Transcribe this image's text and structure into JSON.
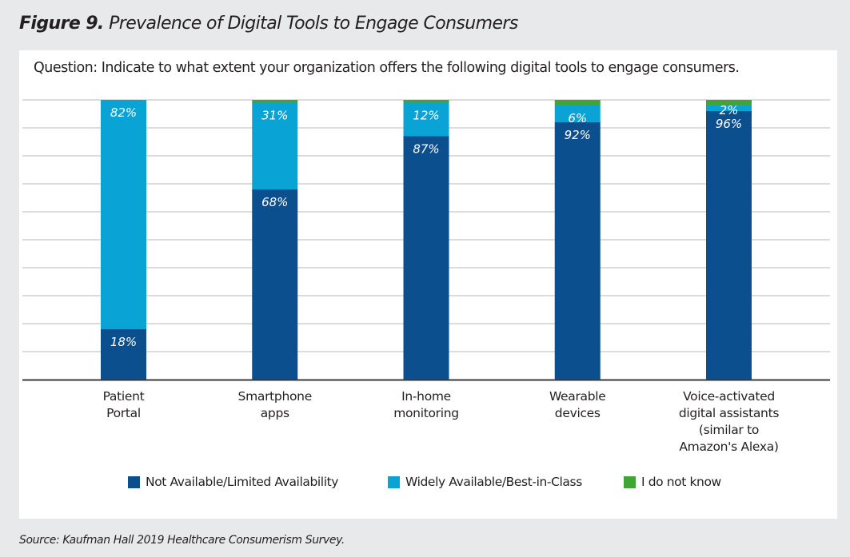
{
  "figure": {
    "number_label": "Figure 9.",
    "title": "Prevalence of Digital Tools to Engage Consumers",
    "question": "Question: Indicate to what extent your organization offers the following digital tools to engage consumers.",
    "source": "Source: Kaufman Hall 2019 Healthcare Consumerism Survey."
  },
  "chart_data": {
    "type": "bar",
    "stacked": true,
    "orientation": "vertical",
    "title": "Prevalence of Digital Tools to Engage Consumers",
    "xlabel": "",
    "ylabel": "",
    "ylim": [
      0,
      100
    ],
    "grid": true,
    "y_tick_labels_shown": false,
    "legend_position": "bottom",
    "categories": [
      "Patient\nPortal",
      "Smartphone\napps",
      "In-home\nmonitoring",
      "Wearable\ndevices",
      "Voice-activated\ndigital assistants\n(similar to\nAmazon's Alexa)"
    ],
    "series": [
      {
        "name": "Not Available/Limited Availability",
        "color": "#0b4f8f",
        "values": [
          18,
          68,
          87,
          92,
          96
        ],
        "labels": [
          "18%",
          "68%",
          "87%",
          "92%",
          "96%"
        ]
      },
      {
        "name": "Widely Available/Best-in-Class",
        "color": "#0aa3d6",
        "values": [
          82,
          31,
          12,
          6,
          2
        ],
        "labels": [
          "82%",
          "31%",
          "12%",
          "6%",
          "2%"
        ]
      },
      {
        "name": "I do not know",
        "color": "#3fa535",
        "values": [
          0,
          1,
          1,
          2,
          2
        ],
        "labels": [
          "",
          "",
          "",
          "",
          ""
        ]
      }
    ]
  },
  "colors": {
    "axis": "#3a3a3a",
    "grid": "#d0d0d0",
    "label_text": "#ffffff"
  }
}
